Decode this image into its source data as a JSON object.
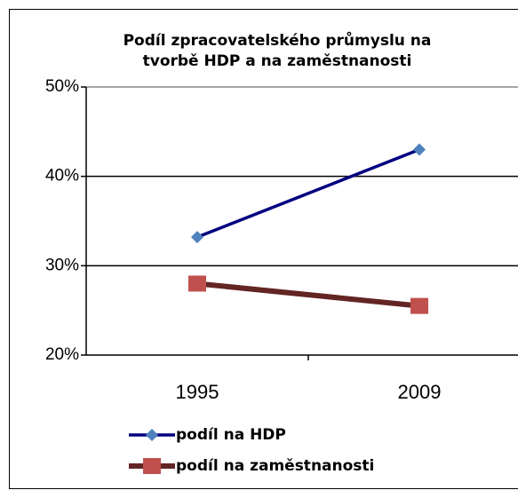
{
  "chart_data": {
    "type": "line",
    "title": [
      "Podíl zpracovatelského  průmyslu na",
      "tvorbě HDP a na zaměstnanosti"
    ],
    "categories": [
      "1995",
      "2009"
    ],
    "series": [
      {
        "name": "podíl na HDP",
        "color": "#000080",
        "marker_color": "#4f81bd",
        "marker": "diamond",
        "values": [
          33.2,
          43
        ]
      },
      {
        "name": "podíl na zaměstnanosti",
        "color": "#632523",
        "marker_color": "#c0504d",
        "marker": "square",
        "values": [
          28,
          25.5
        ]
      }
    ],
    "ylim": [
      20,
      50
    ],
    "yticks": [
      {
        "value": 20,
        "label": "20%"
      },
      {
        "value": 30,
        "label": "30%"
      },
      {
        "value": 40,
        "label": "40%"
      },
      {
        "value": 50,
        "label": "50%"
      }
    ],
    "grid": true,
    "legend": "bottom"
  }
}
